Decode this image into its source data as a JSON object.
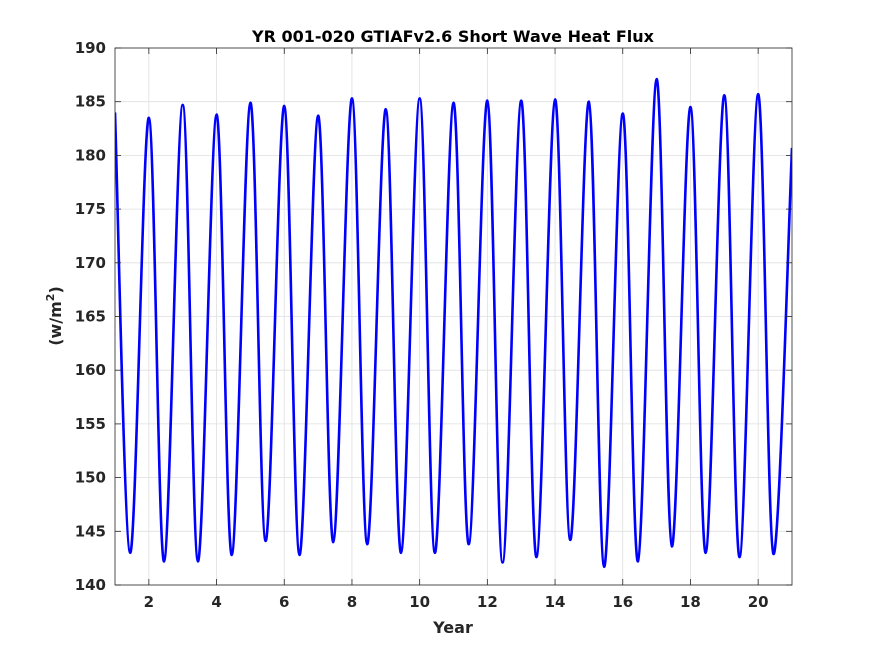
{
  "chart_data": {
    "type": "line",
    "title": "YR 001-020 GTIAFv2.6 Short Wave Heat Flux",
    "xlabel": "Year",
    "ylabel_prefix": "(w/m",
    "ylabel_sup": "2",
    "ylabel_suffix": ")",
    "xlim": [
      1,
      21
    ],
    "ylim": [
      140,
      190
    ],
    "xticks": [
      2,
      4,
      6,
      8,
      10,
      12,
      14,
      16,
      18,
      20
    ],
    "yticks": [
      140,
      145,
      150,
      155,
      160,
      165,
      170,
      175,
      180,
      185,
      190
    ],
    "grid": true,
    "line_color": "#0000ff",
    "series": [
      {
        "x": [
          1.0,
          1.45,
          2.0,
          2.45,
          3.0,
          3.45,
          4.0,
          4.45,
          5.0,
          5.45,
          6.0,
          6.45,
          7.0,
          7.45,
          8.0,
          8.45,
          9.0,
          9.45,
          10.0,
          10.45,
          11.0,
          11.45,
          12.0,
          12.45,
          13.0,
          13.45,
          14.0,
          14.45,
          15.0,
          15.45,
          16.0,
          16.45,
          17.0,
          17.45,
          18.0,
          18.45,
          19.0,
          19.45,
          20.0,
          20.45,
          21.0
        ],
        "y": [
          184.0,
          143.0,
          183.5,
          142.2,
          184.7,
          142.2,
          183.8,
          142.8,
          184.9,
          144.1,
          184.6,
          142.8,
          183.7,
          144.0,
          185.3,
          143.8,
          184.3,
          143.0,
          185.3,
          143.0,
          184.9,
          143.8,
          185.1,
          142.1,
          185.1,
          142.6,
          185.2,
          144.2,
          185.0,
          141.7,
          183.9,
          142.2,
          187.1,
          143.6,
          184.5,
          143.0,
          185.6,
          142.6,
          185.7,
          142.9,
          180.7
        ]
      }
    ]
  }
}
